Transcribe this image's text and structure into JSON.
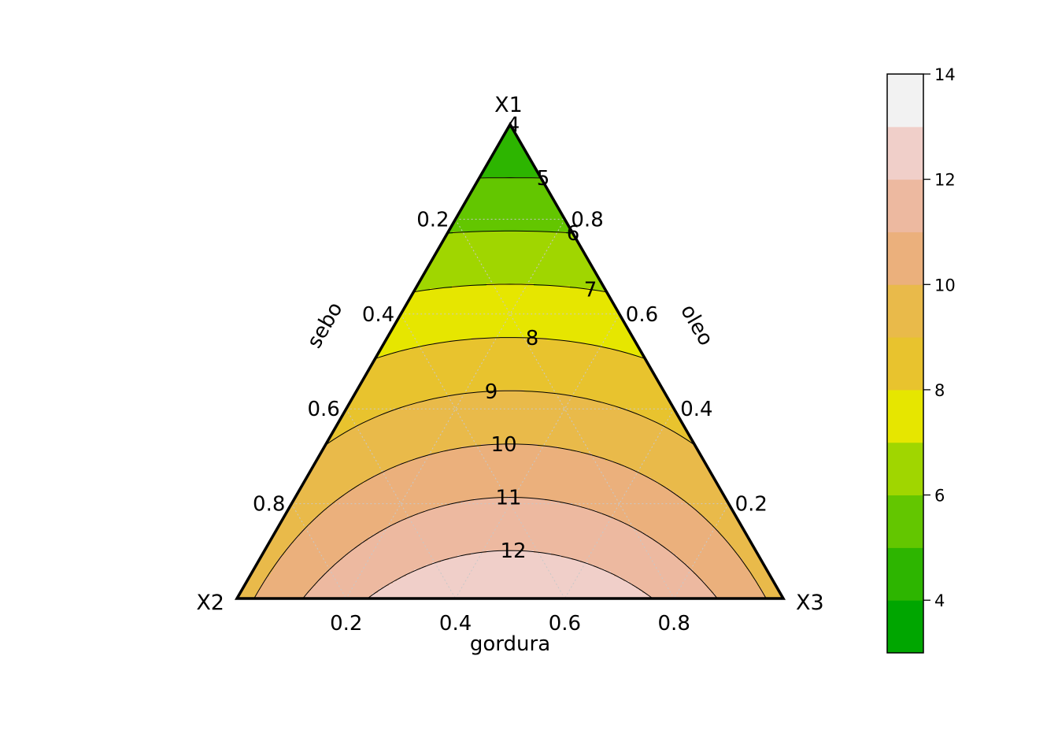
{
  "chart_data": {
    "type": "ternary-contour",
    "vertices": {
      "top": "X1",
      "left": "X2",
      "right": "X3"
    },
    "axes": {
      "left": {
        "title": "sebo",
        "ticks": [
          "0.2",
          "0.4",
          "0.6",
          "0.8"
        ]
      },
      "right": {
        "title": "oleo",
        "ticks": [
          "0.8",
          "0.6",
          "0.4",
          "0.2"
        ]
      },
      "bottom": {
        "title": "gordura",
        "ticks": [
          "0.2",
          "0.4",
          "0.6",
          "0.8"
        ]
      }
    },
    "grid": true,
    "contour_levels": [
      4,
      5,
      6,
      7,
      8,
      9,
      10,
      11,
      12
    ],
    "contour_labels": [
      "4",
      "5",
      "6",
      "7",
      "8",
      "9",
      "10",
      "11",
      "12"
    ],
    "surface": {
      "apex_value": 4.0,
      "base_center_value": 12.9,
      "base_end_value": 9.6
    },
    "colorbar": {
      "placement": "right",
      "range": [
        3,
        14
      ],
      "ticks": [
        "4",
        "6",
        "8",
        "10",
        "12",
        "14"
      ],
      "bands": [
        {
          "from": 3,
          "to": 4,
          "color": "#00a600"
        },
        {
          "from": 4,
          "to": 5,
          "color": "#2db500"
        },
        {
          "from": 5,
          "to": 6,
          "color": "#63c600"
        },
        {
          "from": 6,
          "to": 7,
          "color": "#a0d600"
        },
        {
          "from": 7,
          "to": 8,
          "color": "#e6e600"
        },
        {
          "from": 8,
          "to": 9,
          "color": "#e8c32e"
        },
        {
          "from": 9,
          "to": 10,
          "color": "#e9ba4a"
        },
        {
          "from": 10,
          "to": 11,
          "color": "#ebb07c"
        },
        {
          "from": 11,
          "to": 12,
          "color": "#edb9a0"
        },
        {
          "from": 12,
          "to": 13,
          "color": "#f0cfc9"
        },
        {
          "from": 13,
          "to": 14,
          "color": "#f2f2f2"
        }
      ]
    }
  }
}
